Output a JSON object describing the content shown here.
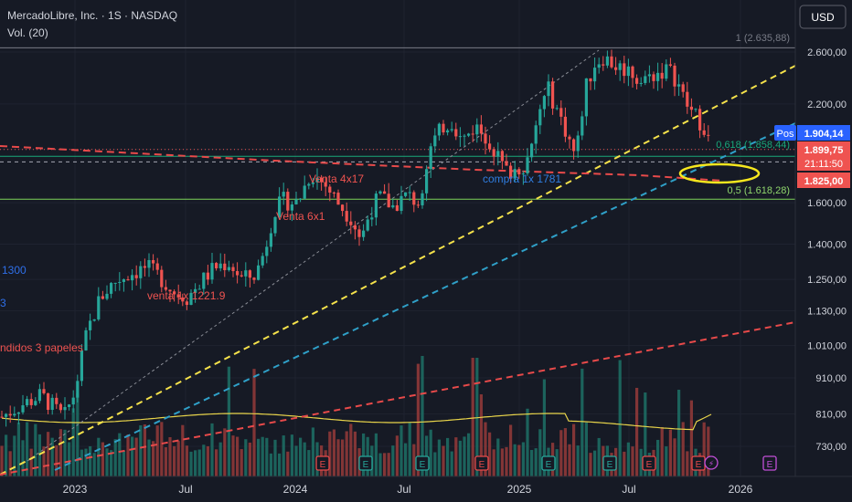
{
  "header": {
    "symbol_line": "MercadoLibre, Inc. · 1S · NASDAQ",
    "volume_label": "Vol. (20)",
    "currency_button": "USD"
  },
  "fib_labels": {
    "level_1": "1 (2.635,88)",
    "level_0618": "0,618 (1.858,44)",
    "level_05": "0,5 (1.618,28)"
  },
  "price_tags": {
    "pos_badge": "Pos",
    "pos_price": "1.904,14",
    "last_price": "1.899,75",
    "countdown": "21:11:50",
    "level_price": "1.825,00"
  },
  "annotations": {
    "venta_4x": "Venta 4x17",
    "venta_6x": "Venta 6x1",
    "venta_1x": "venta 1x 1221.9",
    "compra_1x": "compra 1x 1781",
    "left_1300": "1300",
    "left_3": "3",
    "left_vendidos": "ndidos 3 papeles"
  },
  "colors": {
    "background": "#161a25",
    "bull": "#26a69a",
    "bear": "#ef5350",
    "yellow_trend": "#f5e24b",
    "cyan_trend": "#2fa0c8",
    "red_trend": "#e84a4a",
    "volume_ma": "#e8d44a",
    "fib_0618": "#19a87a",
    "fib_05": "#7cd35a"
  },
  "chart_data": {
    "type": "candlestick",
    "title": "MercadoLibre, Inc. · 1S · NASDAQ",
    "timeframe": "1S (weekly)",
    "currency": "USD",
    "scale": "log",
    "y_ticks": [
      2600,
      2200,
      1900,
      1600,
      1400,
      1250,
      1130,
      1010,
      910,
      810,
      730
    ],
    "y_tick_labels": [
      "2.600,00",
      "2.200,00",
      "1.900,00",
      "1.600,00",
      "1.400,00",
      "1.250,00",
      "1.130,00",
      "1.010,00",
      "910,00",
      "810,00",
      "730,00"
    ],
    "x_tick_labels": [
      "2023",
      "Jul",
      "2024",
      "Jul",
      "2025",
      "Jul",
      "2026"
    ],
    "ohlc_approx": [
      {
        "t": "2023-01",
        "o": 800,
        "h": 900,
        "l": 780,
        "c": 880
      },
      {
        "t": "2023-04",
        "o": 1200,
        "h": 1350,
        "l": 1150,
        "c": 1280
      },
      {
        "t": "2023-07",
        "o": 1250,
        "h": 1340,
        "l": 1160,
        "c": 1230
      },
      {
        "t": "2023-10",
        "o": 1250,
        "h": 1550,
        "l": 1200,
        "c": 1500
      },
      {
        "t": "2024-01",
        "o": 1750,
        "h": 1790,
        "l": 1500,
        "c": 1600
      },
      {
        "t": "2024-04",
        "o": 1600,
        "h": 1650,
        "l": 1330,
        "c": 1420
      },
      {
        "t": "2024-07",
        "o": 1650,
        "h": 1820,
        "l": 1600,
        "c": 1700
      },
      {
        "t": "2024-10",
        "o": 2050,
        "h": 2160,
        "l": 1900,
        "c": 2000
      },
      {
        "t": "2025-01",
        "o": 1780,
        "h": 2100,
        "l": 1710,
        "c": 2050
      },
      {
        "t": "2025-04",
        "o": 2350,
        "h": 2450,
        "l": 1850,
        "c": 2400
      },
      {
        "t": "2025-06",
        "o": 2550,
        "h": 2645,
        "l": 2400,
        "c": 2500
      },
      {
        "t": "2025-09",
        "o": 2400,
        "h": 2550,
        "l": 2100,
        "c": 2250
      },
      {
        "t": "2025-11",
        "o": 2150,
        "h": 2350,
        "l": 1880,
        "c": 1899.75
      }
    ],
    "horizontal_levels": [
      {
        "label": "1 (2.635,88)",
        "value": 2635.88
      },
      {
        "label": "0,618 (1.858,44)",
        "value": 1858.44
      },
      {
        "label": "0,5 (1.618,28)",
        "value": 1618.28
      }
    ],
    "last_price": 1899.75,
    "position_price": 1904.14,
    "level_price": 1825.0
  }
}
